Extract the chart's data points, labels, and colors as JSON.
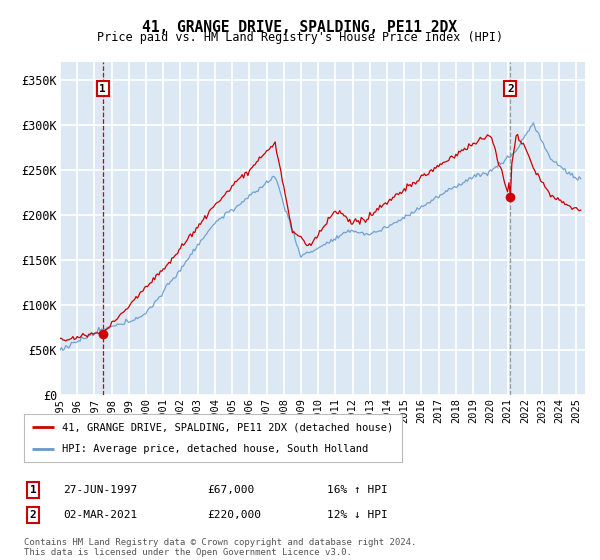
{
  "title": "41, GRANGE DRIVE, SPALDING, PE11 2DX",
  "subtitle": "Price paid vs. HM Land Registry's House Price Index (HPI)",
  "ylabel_ticks": [
    "£0",
    "£50K",
    "£100K",
    "£150K",
    "£200K",
    "£250K",
    "£300K",
    "£350K"
  ],
  "ytick_values": [
    0,
    50000,
    100000,
    150000,
    200000,
    250000,
    300000,
    350000
  ],
  "ylim": [
    0,
    370000
  ],
  "plot_bg_color": "#dce9f5",
  "grid_color": "#ffffff",
  "fig_bg_color": "#ffffff",
  "red_line_color": "#cc0000",
  "blue_line_color": "#6699cc",
  "marker1_date": 1997.49,
  "marker1_price": 67000,
  "marker2_date": 2021.16,
  "marker2_price": 220000,
  "vline1_color": "#cc0000",
  "vline2_color": "#999999",
  "legend_entry1": "41, GRANGE DRIVE, SPALDING, PE11 2DX (detached house)",
  "legend_entry2": "HPI: Average price, detached house, South Holland",
  "annotation1_num": "1",
  "annotation1_date": "27-JUN-1997",
  "annotation1_price": "£67,000",
  "annotation1_pct": "16% ↑ HPI",
  "annotation2_num": "2",
  "annotation2_date": "02-MAR-2021",
  "annotation2_price": "£220,000",
  "annotation2_pct": "12% ↓ HPI",
  "footer": "Contains HM Land Registry data © Crown copyright and database right 2024.\nThis data is licensed under the Open Government Licence v3.0.",
  "xstart": 1995.0,
  "xend": 2025.5
}
